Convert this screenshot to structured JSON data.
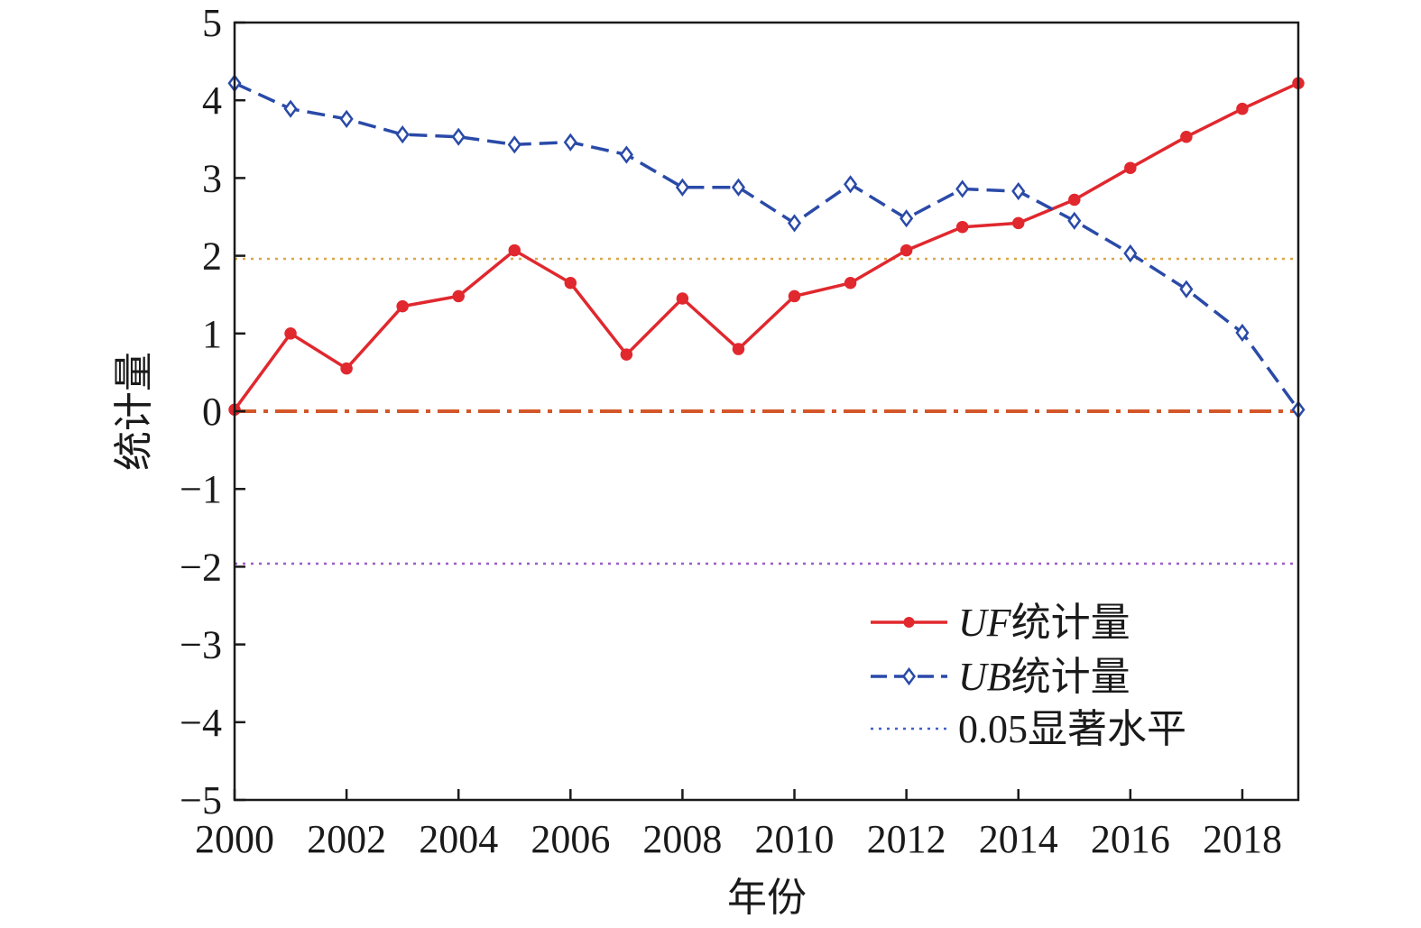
{
  "chart_data": {
    "type": "line",
    "xlabel": "年份",
    "ylabel": "统计量",
    "xlim": [
      2000,
      2019
    ],
    "ylim": [
      -5,
      5
    ],
    "x_ticks": [
      2000,
      2002,
      2004,
      2006,
      2008,
      2010,
      2012,
      2014,
      2016,
      2018
    ],
    "y_ticks": [
      5,
      4,
      3,
      2,
      1,
      0,
      -1,
      -2,
      -3,
      -4,
      -5
    ],
    "y_tick_labels": [
      "5",
      "4",
      "3",
      "2",
      "1",
      "0",
      "−1",
      "−2",
      "−3",
      "−4",
      "−5"
    ],
    "x": [
      2000,
      2001,
      2002,
      2003,
      2004,
      2005,
      2006,
      2007,
      2008,
      2009,
      2010,
      2011,
      2012,
      2013,
      2014,
      2015,
      2016,
      2017,
      2018,
      2019
    ],
    "series": [
      {
        "name_prefix": "UF",
        "name_suffix": "统计量",
        "color": "#e0282e",
        "style": "solid",
        "marker": "circle",
        "values": [
          0.02,
          1.0,
          0.55,
          1.35,
          1.48,
          2.07,
          1.65,
          0.73,
          1.45,
          0.8,
          1.48,
          1.65,
          2.07,
          2.37,
          2.42,
          2.72,
          3.13,
          3.53,
          3.89,
          4.22
        ]
      },
      {
        "name_prefix": "UB",
        "name_suffix": "统计量",
        "color": "#2a4aa8",
        "style": "dashed",
        "marker": "diamond",
        "values": [
          4.22,
          3.89,
          3.76,
          3.56,
          3.53,
          3.43,
          3.46,
          3.3,
          2.88,
          2.88,
          2.42,
          2.92,
          2.48,
          2.86,
          2.83,
          2.45,
          2.03,
          1.57,
          1.01,
          0.02
        ]
      }
    ],
    "reference_lines": [
      {
        "y": 1.96,
        "color": "#d9a74a",
        "style": "dotted"
      },
      {
        "y": -1.96,
        "color": "#9b5cc8",
        "style": "dotted"
      },
      {
        "y": 0,
        "color": "#d4572a",
        "style": "dashdot"
      }
    ],
    "legend": {
      "placement": "bottom-right",
      "entries": [
        {
          "prefix": "UF",
          "suffix": "统计量",
          "color": "#e0282e",
          "style": "solid",
          "marker": "circle"
        },
        {
          "prefix": "UB",
          "suffix": "统计量",
          "color": "#2a4aa8",
          "style": "dashed",
          "marker": "diamond"
        },
        {
          "prefix": "0.05",
          "suffix": "显著水平",
          "color": "#3d5fd0",
          "style": "dotted",
          "marker": "none"
        }
      ]
    }
  }
}
